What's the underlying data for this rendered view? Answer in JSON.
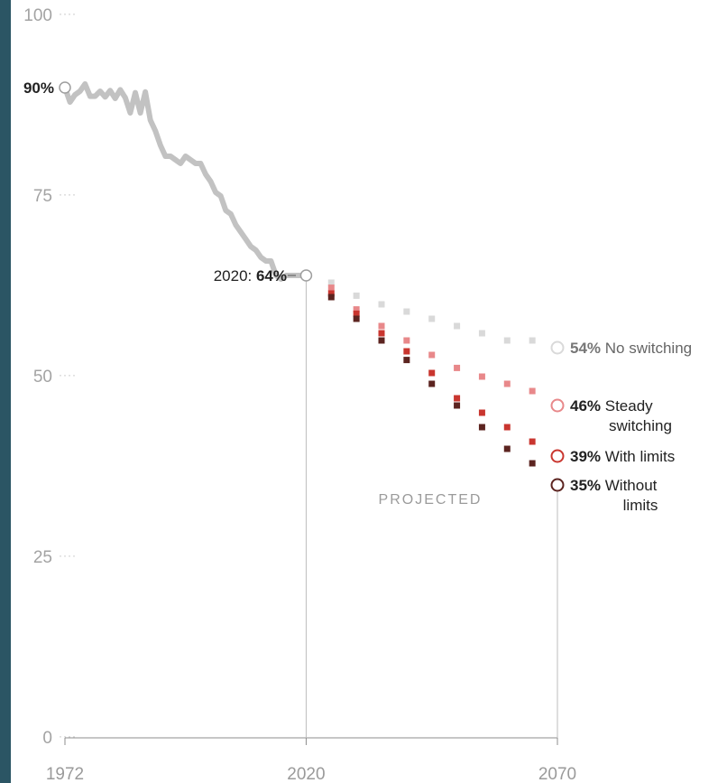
{
  "chart_data": {
    "type": "line",
    "ylim": [
      0,
      100
    ],
    "xlim": [
      1972,
      2070
    ],
    "y_ticks": [
      0,
      25,
      50,
      75,
      100
    ],
    "x_ticks": [
      1972,
      2020,
      2070
    ],
    "grid": false,
    "historical": {
      "color": "#c2c2c2",
      "points": [
        [
          1972,
          90
        ],
        [
          1973,
          88
        ],
        [
          1974,
          89
        ],
        [
          1975,
          89.5
        ],
        [
          1976,
          90.5
        ],
        [
          1977,
          88.8
        ],
        [
          1978,
          88.8
        ],
        [
          1979,
          89.5
        ],
        [
          1980,
          88.7
        ],
        [
          1981,
          89.6
        ],
        [
          1982,
          88.5
        ],
        [
          1983,
          89.7
        ],
        [
          1984,
          88.6
        ],
        [
          1985,
          86.5
        ],
        [
          1986,
          89.3
        ],
        [
          1987,
          86.5
        ],
        [
          1988,
          89.4
        ],
        [
          1989,
          85.5
        ],
        [
          1990,
          84
        ],
        [
          1991,
          82
        ],
        [
          1992,
          80.5
        ],
        [
          1993,
          80.5
        ],
        [
          1994,
          80
        ],
        [
          1995,
          79.5
        ],
        [
          1996,
          80.5
        ],
        [
          1997,
          80
        ],
        [
          1998,
          79.5
        ],
        [
          1999,
          79.5
        ],
        [
          2000,
          78
        ],
        [
          2001,
          77
        ],
        [
          2002,
          75.5
        ],
        [
          2003,
          75
        ],
        [
          2004,
          73
        ],
        [
          2005,
          72.5
        ],
        [
          2006,
          71
        ],
        [
          2007,
          70
        ],
        [
          2008,
          69
        ],
        [
          2009,
          68
        ],
        [
          2010,
          67.5
        ],
        [
          2011,
          66.5
        ],
        [
          2012,
          66
        ],
        [
          2013,
          66
        ],
        [
          2014,
          64
        ],
        [
          2015,
          63.5
        ],
        [
          2016,
          64
        ],
        [
          2017,
          64
        ],
        [
          2018,
          64
        ],
        [
          2019,
          64
        ],
        [
          2020,
          64
        ]
      ]
    },
    "start_label": {
      "value": "90%"
    },
    "end_label": {
      "prefix": "2020:",
      "value": "64%"
    },
    "projected_label": "PROJECTED",
    "series": [
      {
        "pct": "54%",
        "line1": "No switching",
        "line2": "",
        "color": "#d9d9d9",
        "points": [
          [
            2025,
            63
          ],
          [
            2030,
            61.2
          ],
          [
            2035,
            60
          ],
          [
            2040,
            59
          ],
          [
            2045,
            58
          ],
          [
            2050,
            57
          ],
          [
            2055,
            56
          ],
          [
            2060,
            55
          ],
          [
            2065,
            55
          ],
          [
            2070,
            54
          ]
        ]
      },
      {
        "pct": "46%",
        "line1": "Steady",
        "line2": "switching",
        "color": "#e8888a",
        "points": [
          [
            2025,
            62.3
          ],
          [
            2030,
            59.3
          ],
          [
            2035,
            57
          ],
          [
            2040,
            55
          ],
          [
            2045,
            53
          ],
          [
            2050,
            51.2
          ],
          [
            2055,
            50
          ],
          [
            2060,
            49
          ],
          [
            2065,
            48
          ],
          [
            2070,
            46
          ]
        ]
      },
      {
        "pct": "39%",
        "line1": "With limits",
        "line2": "",
        "color": "#c9362f",
        "points": [
          [
            2025,
            61.5
          ],
          [
            2030,
            58.7
          ],
          [
            2035,
            56
          ],
          [
            2040,
            53.5
          ],
          [
            2045,
            50.5
          ],
          [
            2050,
            47
          ],
          [
            2055,
            45
          ],
          [
            2060,
            43
          ],
          [
            2065,
            41
          ],
          [
            2070,
            39
          ]
        ]
      },
      {
        "pct": "35%",
        "line1": "Without",
        "line2": "limits",
        "color": "#5c2420",
        "points": [
          [
            2025,
            61
          ],
          [
            2030,
            58
          ],
          [
            2035,
            55
          ],
          [
            2040,
            52.3
          ],
          [
            2045,
            49
          ],
          [
            2050,
            46
          ],
          [
            2055,
            43
          ],
          [
            2060,
            40
          ],
          [
            2065,
            38
          ],
          [
            2070,
            35
          ]
        ]
      }
    ]
  }
}
